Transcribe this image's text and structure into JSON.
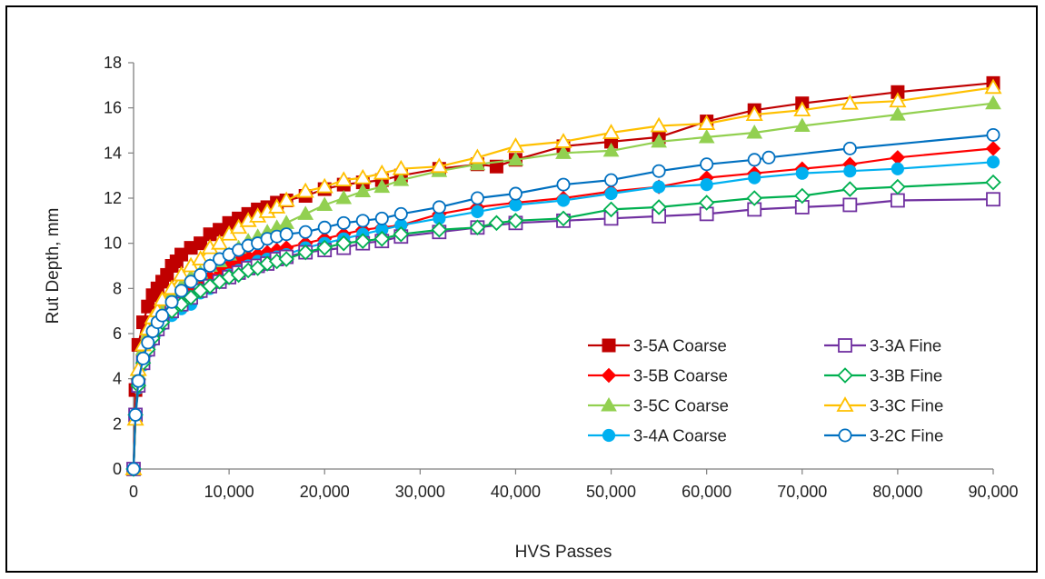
{
  "chart_data": {
    "type": "line",
    "title": "",
    "xlabel": "HVS Passes",
    "ylabel": "Rut Depth, mm",
    "xlim": [
      0,
      90000
    ],
    "ylim": [
      0,
      18
    ],
    "x_ticks": [
      "0",
      "10,000",
      "20,000",
      "30,000",
      "40,000",
      "50,000",
      "60,000",
      "70,000",
      "80,000",
      "90,000"
    ],
    "y_ticks": [
      "0",
      "2",
      "4",
      "6",
      "8",
      "10",
      "12",
      "14",
      "16",
      "18"
    ],
    "grid": false,
    "legend_position": "bottom-right",
    "series": [
      {
        "name": "3-5A Coarse",
        "color": "#C00000",
        "marker": "square-filled",
        "x": [
          0,
          200,
          500,
          1000,
          1500,
          2000,
          2500,
          3000,
          3500,
          4000,
          4500,
          5000,
          6000,
          7000,
          8000,
          9000,
          10000,
          11000,
          12000,
          13000,
          14000,
          15000,
          16000,
          18000,
          20000,
          22000,
          24000,
          26000,
          28000,
          32000,
          36000,
          38000,
          40000,
          45000,
          50000,
          55000,
          60000,
          65000,
          70000,
          80000,
          90000
        ],
        "y": [
          0,
          3.5,
          5.5,
          6.5,
          7.2,
          7.7,
          8.0,
          8.3,
          8.6,
          9.0,
          9.2,
          9.5,
          9.8,
          10.0,
          10.4,
          10.6,
          10.9,
          11.1,
          11.3,
          11.5,
          11.6,
          11.8,
          11.9,
          12.1,
          12.4,
          12.6,
          12.7,
          12.8,
          13.0,
          13.3,
          13.5,
          13.4,
          13.7,
          14.3,
          14.5,
          14.7,
          15.4,
          15.9,
          16.2,
          16.7,
          17.1
        ]
      },
      {
        "name": "3-5B Coarse",
        "color": "#FF0000",
        "marker": "diamond-filled",
        "x": [
          0,
          200,
          500,
          1000,
          1500,
          2000,
          2500,
          3000,
          4000,
          5000,
          6000,
          7000,
          8000,
          9000,
          10000,
          11000,
          12000,
          13000,
          14000,
          15000,
          16000,
          18000,
          20000,
          22000,
          24000,
          26000,
          28000,
          32000,
          36000,
          40000,
          45000,
          50000,
          55000,
          60000,
          65000,
          70000,
          75000,
          80000,
          90000
        ],
        "y": [
          0,
          2.3,
          4.0,
          5.0,
          5.6,
          6.1,
          6.5,
          6.8,
          7.3,
          7.7,
          8.0,
          8.3,
          8.5,
          8.8,
          9.0,
          9.2,
          9.4,
          9.5,
          9.6,
          9.7,
          9.8,
          10.0,
          10.2,
          10.4,
          10.6,
          10.7,
          10.8,
          11.3,
          11.6,
          11.8,
          12.0,
          12.3,
          12.5,
          12.9,
          13.1,
          13.3,
          13.5,
          13.8,
          14.2
        ]
      },
      {
        "name": "3-5C Coarse",
        "color": "#92D050",
        "marker": "triangle-filled",
        "x": [
          0,
          200,
          500,
          1000,
          1500,
          2000,
          2500,
          3000,
          4000,
          5000,
          6000,
          7000,
          8000,
          9000,
          10000,
          11000,
          12000,
          13000,
          14000,
          15000,
          16000,
          18000,
          20000,
          22000,
          24000,
          26000,
          28000,
          32000,
          36000,
          40000,
          45000,
          50000,
          55000,
          60000,
          65000,
          70000,
          80000,
          90000
        ],
        "y": [
          0,
          2.2,
          4.2,
          5.3,
          6.0,
          6.5,
          6.9,
          7.3,
          7.8,
          8.1,
          8.5,
          8.7,
          9.0,
          9.2,
          9.5,
          9.8,
          10.1,
          10.3,
          10.5,
          10.7,
          10.9,
          11.3,
          11.7,
          12.0,
          12.3,
          12.5,
          12.8,
          13.2,
          13.5,
          13.7,
          14.0,
          14.1,
          14.5,
          14.7,
          14.9,
          15.2,
          15.7,
          16.2
        ]
      },
      {
        "name": "3-4A Coarse",
        "color": "#00B0F0",
        "marker": "circle-filled",
        "x": [
          0,
          200,
          500,
          1000,
          1500,
          2000,
          2500,
          3000,
          4000,
          5000,
          6000,
          7000,
          8000,
          9000,
          10000,
          11000,
          12000,
          13000,
          14000,
          15000,
          16000,
          18000,
          20000,
          22000,
          24000,
          26000,
          28000,
          32000,
          36000,
          40000,
          45000,
          50000,
          55000,
          60000,
          65000,
          70000,
          75000,
          80000,
          90000
        ],
        "y": [
          0,
          2.3,
          3.6,
          4.6,
          5.2,
          5.7,
          6.1,
          6.4,
          6.8,
          7.1,
          7.3,
          7.8,
          8.0,
          8.3,
          8.6,
          8.8,
          9.0,
          9.2,
          9.3,
          9.4,
          9.5,
          9.8,
          10.0,
          10.2,
          10.4,
          10.6,
          10.8,
          11.1,
          11.4,
          11.7,
          11.9,
          12.2,
          12.5,
          12.6,
          12.9,
          13.1,
          13.2,
          13.3,
          13.6
        ]
      },
      {
        "name": "3-3A Fine",
        "color": "#7030A0",
        "marker": "square-open",
        "x": [
          0,
          200,
          500,
          1000,
          1500,
          2000,
          2500,
          3000,
          4000,
          5000,
          6000,
          7000,
          8000,
          9000,
          10000,
          11000,
          12000,
          13000,
          14000,
          15000,
          16000,
          18000,
          20000,
          22000,
          24000,
          26000,
          28000,
          32000,
          36000,
          40000,
          45000,
          50000,
          55000,
          60000,
          65000,
          70000,
          75000,
          80000,
          90000
        ],
        "y": [
          0,
          2.4,
          3.7,
          4.7,
          5.3,
          5.8,
          6.2,
          6.5,
          7.0,
          7.3,
          7.6,
          7.9,
          8.1,
          8.3,
          8.5,
          8.7,
          8.9,
          9.0,
          9.1,
          9.3,
          9.4,
          9.6,
          9.7,
          9.8,
          10.0,
          10.1,
          10.3,
          10.5,
          10.7,
          10.9,
          11.0,
          11.1,
          11.2,
          11.3,
          11.5,
          11.6,
          11.7,
          11.9,
          11.95
        ]
      },
      {
        "name": "3-3B Fine",
        "color": "#00B050",
        "marker": "diamond-open",
        "x": [
          0,
          200,
          500,
          1000,
          1500,
          2000,
          2500,
          3000,
          4000,
          5000,
          6000,
          7000,
          8000,
          9000,
          10000,
          11000,
          12000,
          13000,
          14000,
          15000,
          16000,
          18000,
          20000,
          22000,
          24000,
          26000,
          28000,
          32000,
          36000,
          38000,
          40000,
          45000,
          50000,
          55000,
          60000,
          65000,
          70000,
          75000,
          80000,
          90000
        ],
        "y": [
          0,
          2.4,
          3.7,
          4.7,
          5.3,
          5.8,
          6.2,
          6.5,
          7.0,
          7.3,
          7.6,
          7.9,
          8.1,
          8.3,
          8.5,
          8.6,
          8.8,
          8.9,
          9.1,
          9.2,
          9.3,
          9.6,
          9.8,
          10.0,
          10.1,
          10.2,
          10.4,
          10.6,
          10.7,
          10.9,
          11.0,
          11.1,
          11.5,
          11.6,
          11.8,
          12.0,
          12.1,
          12.4,
          12.5,
          12.7
        ]
      },
      {
        "name": "3-3C Fine",
        "color": "#FFC000",
        "marker": "triangle-open",
        "x": [
          0,
          200,
          500,
          1000,
          1500,
          2000,
          2500,
          3000,
          4000,
          5000,
          6000,
          7000,
          8000,
          9000,
          10000,
          11000,
          12000,
          13000,
          14000,
          15000,
          16000,
          18000,
          20000,
          22000,
          24000,
          26000,
          28000,
          32000,
          36000,
          40000,
          45000,
          50000,
          55000,
          60000,
          65000,
          70000,
          75000,
          80000,
          90000
        ],
        "y": [
          0,
          2.2,
          4.4,
          5.5,
          6.2,
          6.7,
          7.0,
          7.5,
          8.0,
          8.6,
          9.0,
          9.3,
          9.8,
          10.0,
          10.4,
          10.7,
          11.0,
          11.2,
          11.4,
          11.6,
          11.9,
          12.3,
          12.5,
          12.8,
          12.9,
          13.1,
          13.3,
          13.4,
          13.8,
          14.3,
          14.5,
          14.9,
          15.2,
          15.3,
          15.7,
          15.9,
          16.2,
          16.3,
          16.9
        ]
      },
      {
        "name": "3-2C Fine",
        "color": "#0070C0",
        "marker": "circle-open",
        "x": [
          0,
          200,
          500,
          1000,
          1500,
          2000,
          2500,
          3000,
          4000,
          5000,
          6000,
          7000,
          8000,
          9000,
          10000,
          11000,
          12000,
          13000,
          14000,
          15000,
          16000,
          18000,
          20000,
          22000,
          24000,
          26000,
          28000,
          32000,
          36000,
          40000,
          45000,
          50000,
          55000,
          60000,
          65000,
          66500,
          75000,
          90000
        ],
        "y": [
          0,
          2.4,
          3.9,
          4.9,
          5.6,
          6.1,
          6.5,
          6.8,
          7.4,
          7.9,
          8.3,
          8.6,
          9.0,
          9.3,
          9.5,
          9.7,
          9.9,
          10.0,
          10.2,
          10.3,
          10.4,
          10.5,
          10.7,
          10.9,
          11.0,
          11.1,
          11.3,
          11.6,
          12.0,
          12.2,
          12.6,
          12.8,
          13.2,
          13.5,
          13.7,
          13.8,
          14.2,
          14.8
        ]
      }
    ]
  }
}
